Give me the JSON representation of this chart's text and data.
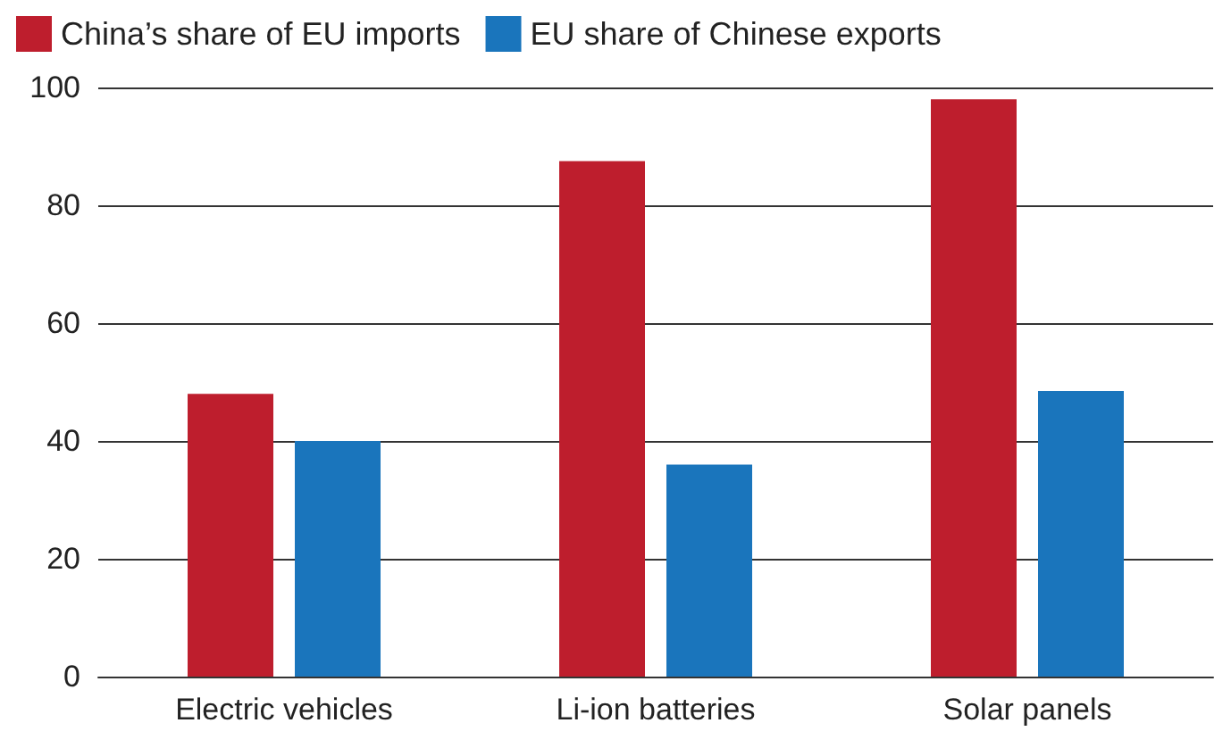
{
  "chart_data": {
    "type": "bar",
    "categories": [
      "Electric vehicles",
      "Li-ion batteries",
      "Solar panels"
    ],
    "series": [
      {
        "name": "China’s share of EU imports",
        "color": "#be1e2d",
        "values": [
          48,
          87.5,
          98
        ]
      },
      {
        "name": "EU share of Chinese exports",
        "color": "#1a75bc",
        "values": [
          40,
          36,
          48.5
        ]
      }
    ],
    "ylim": [
      0,
      100
    ],
    "yticks": [
      0,
      20,
      40,
      60,
      80,
      100
    ],
    "grid": "y",
    "legend": "top left"
  }
}
